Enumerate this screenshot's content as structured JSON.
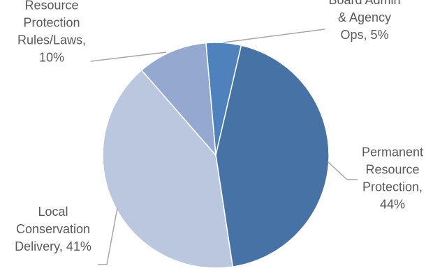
{
  "chart_data": {
    "type": "pie",
    "title": "",
    "slices": [
      {
        "category_lines": [
          "Board Admin",
          "& Agency",
          "Ops, 5%"
        ],
        "value": 5,
        "color": "#4f81bd"
      },
      {
        "category_lines": [
          "Permanent",
          "Resource",
          "Protection,",
          "44%"
        ],
        "value": 44,
        "color": "#4672a5"
      },
      {
        "category_lines": [
          "Local",
          "Conservation",
          "Delivery, 41%"
        ],
        "value": 41,
        "color": "#bac7df"
      },
      {
        "category_lines": [
          "Resource",
          "Protection",
          "Rules/Laws,",
          "10%"
        ],
        "value": 10,
        "color": "#95a8d0"
      }
    ],
    "start_angle_deg": -5,
    "direction": "clockwise",
    "legend": "none",
    "data_labels": "outside-with-leader-lines"
  }
}
